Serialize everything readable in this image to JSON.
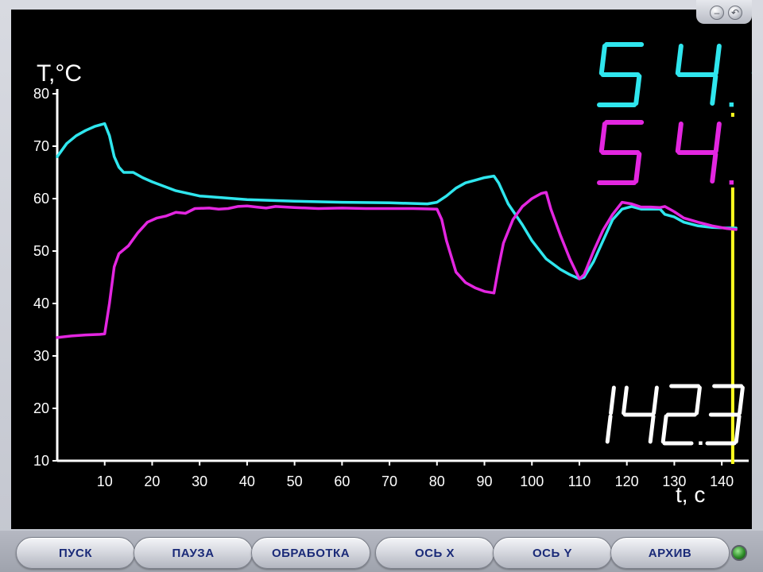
{
  "window_buttons": [
    {
      "name": "minimize-button",
      "glyph": "–"
    },
    {
      "name": "close-button",
      "glyph": "↶"
    }
  ],
  "toolbar": {
    "buttons": [
      {
        "name": "start-button",
        "label": "ПУСК"
      },
      {
        "name": "pause-button",
        "label": "ПАУЗА"
      },
      {
        "name": "processing-button",
        "label": "ОБРАБОТКА"
      },
      {
        "name": "x-axis-button",
        "label": "ОСЬ X"
      },
      {
        "name": "y-axis-button",
        "label": "ОСЬ Y"
      },
      {
        "name": "archive-button",
        "label": "АРХИВ"
      }
    ],
    "indicator_color": "#3fb534"
  },
  "readouts": {
    "cyan_value": "54.4",
    "magenta_value": "54.1",
    "time_value": "142.3"
  },
  "colors": {
    "background": "#000000",
    "axes": "#ffffff",
    "series_cyan": "#2fe6ee",
    "series_magenta": "#e326e0",
    "cursor": "#ffff1e"
  },
  "chart_data": {
    "type": "line",
    "ylabel": "T,°C",
    "xlabel": "t, c",
    "xlim": [
      0,
      145
    ],
    "ylim": [
      10,
      80
    ],
    "x_ticks": [
      10,
      20,
      30,
      40,
      50,
      60,
      70,
      80,
      90,
      100,
      110,
      120,
      130,
      140
    ],
    "y_ticks": [
      10,
      20,
      30,
      40,
      50,
      60,
      70,
      80
    ],
    "cursor_x": 142.3,
    "grid": false,
    "series": [
      {
        "color": "#2fe6ee",
        "points": [
          [
            0,
            68
          ],
          [
            2,
            70.5
          ],
          [
            4,
            72
          ],
          [
            6,
            73
          ],
          [
            8,
            73.8
          ],
          [
            10,
            74.3
          ],
          [
            11,
            72
          ],
          [
            12,
            68
          ],
          [
            13,
            66
          ],
          [
            14,
            65
          ],
          [
            16,
            65
          ],
          [
            18,
            64
          ],
          [
            20,
            63.2
          ],
          [
            25,
            61.5
          ],
          [
            30,
            60.5
          ],
          [
            40,
            59.8
          ],
          [
            50,
            59.5
          ],
          [
            60,
            59.3
          ],
          [
            70,
            59.2
          ],
          [
            78,
            59
          ],
          [
            80,
            59.3
          ],
          [
            82,
            60.5
          ],
          [
            84,
            62
          ],
          [
            86,
            63
          ],
          [
            88,
            63.5
          ],
          [
            90,
            64
          ],
          [
            92,
            64.3
          ],
          [
            93,
            63
          ],
          [
            95,
            59
          ],
          [
            98,
            55
          ],
          [
            100,
            52
          ],
          [
            103,
            48.5
          ],
          [
            106,
            46.5
          ],
          [
            108,
            45.5
          ],
          [
            110,
            44.7
          ],
          [
            111,
            45
          ],
          [
            113,
            48
          ],
          [
            115,
            52
          ],
          [
            117,
            56
          ],
          [
            119,
            58
          ],
          [
            121,
            58.5
          ],
          [
            123,
            58
          ],
          [
            125,
            58
          ],
          [
            127,
            58
          ],
          [
            128,
            57
          ],
          [
            130,
            56.5
          ],
          [
            132,
            55.5
          ],
          [
            135,
            54.8
          ],
          [
            138,
            54.5
          ],
          [
            141,
            54.4
          ],
          [
            143,
            54.4
          ]
        ]
      },
      {
        "color": "#e326e0",
        "points": [
          [
            0,
            33.5
          ],
          [
            3,
            33.8
          ],
          [
            6,
            34
          ],
          [
            9,
            34.1
          ],
          [
            10,
            34.2
          ],
          [
            11,
            40
          ],
          [
            12,
            47
          ],
          [
            13,
            49.5
          ],
          [
            15,
            51
          ],
          [
            17,
            53.5
          ],
          [
            19,
            55.5
          ],
          [
            21,
            56.3
          ],
          [
            23,
            56.7
          ],
          [
            25,
            57.4
          ],
          [
            27,
            57.2
          ],
          [
            29,
            58.1
          ],
          [
            32,
            58.2
          ],
          [
            34,
            58
          ],
          [
            36,
            58.1
          ],
          [
            38,
            58.5
          ],
          [
            40,
            58.6
          ],
          [
            42,
            58.4
          ],
          [
            44,
            58.2
          ],
          [
            46,
            58.5
          ],
          [
            50,
            58.3
          ],
          [
            55,
            58.1
          ],
          [
            60,
            58.2
          ],
          [
            65,
            58.1
          ],
          [
            70,
            58.1
          ],
          [
            75,
            58.1
          ],
          [
            80,
            58
          ],
          [
            81,
            56
          ],
          [
            82,
            52
          ],
          [
            84,
            46
          ],
          [
            86,
            44
          ],
          [
            88,
            43
          ],
          [
            90,
            42.3
          ],
          [
            92,
            42
          ],
          [
            93,
            47
          ],
          [
            94,
            51.5
          ],
          [
            96,
            56
          ],
          [
            98,
            58.5
          ],
          [
            100,
            60
          ],
          [
            102,
            61
          ],
          [
            103,
            61.2
          ],
          [
            104,
            58
          ],
          [
            106,
            53
          ],
          [
            108,
            48.5
          ],
          [
            110,
            44.7
          ],
          [
            111,
            45.5
          ],
          [
            113,
            50
          ],
          [
            115,
            54
          ],
          [
            117,
            57
          ],
          [
            119,
            59.3
          ],
          [
            121,
            59
          ],
          [
            123,
            58.4
          ],
          [
            125,
            58.4
          ],
          [
            127,
            58.3
          ],
          [
            128,
            58.5
          ],
          [
            130,
            57.5
          ],
          [
            132,
            56.3
          ],
          [
            135,
            55.5
          ],
          [
            138,
            54.8
          ],
          [
            141,
            54.3
          ],
          [
            143,
            54.1
          ]
        ]
      }
    ]
  }
}
